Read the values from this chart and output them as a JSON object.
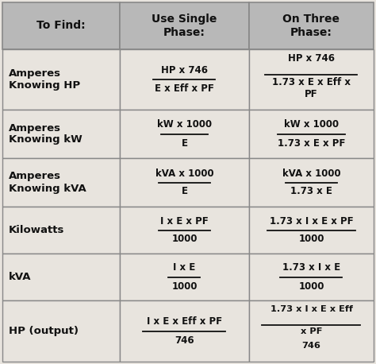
{
  "header_bg": "#b8b8b8",
  "cell_bg": "#e8e4de",
  "formula_bg": "#e8e4de",
  "border_color": "#888888",
  "text_color": "#111111",
  "figsize": [
    4.74,
    4.58
  ],
  "dpi": 100,
  "col_labels": [
    "To Find:",
    "Use Single\nPhase:",
    "On Three\nPhase:"
  ],
  "rows": [
    {
      "label": "Amperes\nKnowing HP",
      "single_num": "HP x 746",
      "single_den": "E x Eff x PF",
      "three_num": "HP x 746",
      "three_den_line1": "1.73 x E x Eff x",
      "three_den_line2": "PF",
      "tall": true
    },
    {
      "label": "Amperes\nKnowing kW",
      "single_num": "kW x 1000",
      "single_den": "E",
      "three_num": "kW x 1000",
      "three_den_line1": "1.73 x E x PF",
      "three_den_line2": "",
      "tall": false
    },
    {
      "label": "Amperes\nKnowing kVA",
      "single_num": "kVA x 1000",
      "single_den": "E",
      "three_num": "kVA x 1000",
      "three_den_line1": "1.73 x E",
      "three_den_line2": "",
      "tall": false
    },
    {
      "label": "Kilowatts",
      "single_num": "I x E x PF",
      "single_den": "1000",
      "three_num": "1.73 x I x E x PF",
      "three_den_line1": "1000",
      "three_den_line2": "",
      "tall": false
    },
    {
      "label": "kVA",
      "single_num": "I x E",
      "single_den": "1000",
      "three_num": "1.73 x I x E",
      "three_den_line1": "1000",
      "three_den_line2": "",
      "tall": false
    },
    {
      "label": "HP (output)",
      "single_num": "I x E x Eff x PF",
      "single_den": "746",
      "three_num": "1.73 x I x E x Eff",
      "three_den_line1": "x PF",
      "three_den_line2": "746",
      "tall": true
    }
  ]
}
